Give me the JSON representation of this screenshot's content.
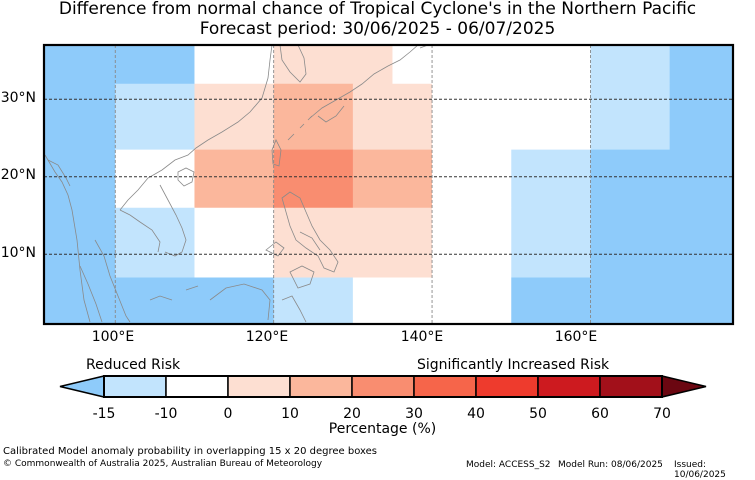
{
  "title": {
    "line1": "Difference from normal chance of Tropical Cyclone's in the Northern Pacific",
    "line2": "Forecast period: 30/06/2025 - 06/07/2025"
  },
  "colors": {
    "frame": "#000000",
    "coast": "#8a8a8a",
    "grid": "#333333",
    "outline": "#000000"
  },
  "map": {
    "lon_range": [
      91,
      178
    ],
    "lat_range": [
      1,
      37
    ],
    "lat_labels": [
      "30°N",
      "20°N",
      "10°N"
    ],
    "lat_values": [
      30,
      20,
      10
    ],
    "lon_labels": [
      "100°E",
      "120°E",
      "140°E",
      "160°E"
    ],
    "lon_values": [
      100,
      120,
      140,
      160
    ],
    "cells": [
      {
        "lon": [
          91,
          110
        ],
        "lat": [
          32,
          37
        ],
        "fill": "#8ecbfa"
      },
      {
        "lon": [
          110,
          120
        ],
        "lat": [
          32,
          37
        ],
        "fill": "#ffffff"
      },
      {
        "lon": [
          120,
          135
        ],
        "lat": [
          32,
          37
        ],
        "fill": "#fddfd2"
      },
      {
        "lon": [
          135,
          160
        ],
        "lat": [
          32,
          37
        ],
        "fill": "#ffffff"
      },
      {
        "lon": [
          160,
          170
        ],
        "lat": [
          32,
          37
        ],
        "fill": "#c2e4fd"
      },
      {
        "lon": [
          170,
          178
        ],
        "lat": [
          32,
          37
        ],
        "fill": "#8ecbfa"
      },
      {
        "lon": [
          91,
          100
        ],
        "lat": [
          23.5,
          32
        ],
        "fill": "#8ecbfa"
      },
      {
        "lon": [
          100,
          110
        ],
        "lat": [
          23.5,
          32
        ],
        "fill": "#c2e4fd"
      },
      {
        "lon": [
          110,
          120
        ],
        "lat": [
          23.5,
          32
        ],
        "fill": "#fddfd2"
      },
      {
        "lon": [
          120,
          130
        ],
        "lat": [
          23.5,
          32
        ],
        "fill": "#fbb79c"
      },
      {
        "lon": [
          130,
          140
        ],
        "lat": [
          23.5,
          32
        ],
        "fill": "#fddfd2"
      },
      {
        "lon": [
          140,
          160
        ],
        "lat": [
          23.5,
          32
        ],
        "fill": "#ffffff"
      },
      {
        "lon": [
          160,
          170
        ],
        "lat": [
          23.5,
          32
        ],
        "fill": "#c2e4fd"
      },
      {
        "lon": [
          170,
          178
        ],
        "lat": [
          23.5,
          32
        ],
        "fill": "#8ecbfa"
      },
      {
        "lon": [
          91,
          100
        ],
        "lat": [
          16,
          23.5
        ],
        "fill": "#8ecbfa"
      },
      {
        "lon": [
          100,
          110
        ],
        "lat": [
          16,
          23.5
        ],
        "fill": "#ffffff"
      },
      {
        "lon": [
          110,
          120
        ],
        "lat": [
          16,
          23.5
        ],
        "fill": "#fbb79c"
      },
      {
        "lon": [
          120,
          130
        ],
        "lat": [
          16,
          23.5
        ],
        "fill": "#f98d70"
      },
      {
        "lon": [
          130,
          140
        ],
        "lat": [
          16,
          23.5
        ],
        "fill": "#fbb79c"
      },
      {
        "lon": [
          140,
          150
        ],
        "lat": [
          16,
          23.5
        ],
        "fill": "#ffffff"
      },
      {
        "lon": [
          150,
          160
        ],
        "lat": [
          16,
          23.5
        ],
        "fill": "#c2e4fd"
      },
      {
        "lon": [
          160,
          178
        ],
        "lat": [
          16,
          23.5
        ],
        "fill": "#8ecbfa"
      },
      {
        "lon": [
          91,
          100
        ],
        "lat": [
          7,
          16
        ],
        "fill": "#8ecbfa"
      },
      {
        "lon": [
          100,
          110
        ],
        "lat": [
          7,
          16
        ],
        "fill": "#c2e4fd"
      },
      {
        "lon": [
          110,
          120
        ],
        "lat": [
          7,
          16
        ],
        "fill": "#ffffff"
      },
      {
        "lon": [
          120,
          140
        ],
        "lat": [
          7,
          16
        ],
        "fill": "#fddfd2"
      },
      {
        "lon": [
          140,
          150
        ],
        "lat": [
          7,
          16
        ],
        "fill": "#ffffff"
      },
      {
        "lon": [
          150,
          160
        ],
        "lat": [
          7,
          16
        ],
        "fill": "#c2e4fd"
      },
      {
        "lon": [
          160,
          178
        ],
        "lat": [
          7,
          16
        ],
        "fill": "#8ecbfa"
      },
      {
        "lon": [
          91,
          120
        ],
        "lat": [
          1,
          7
        ],
        "fill": "#8ecbfa"
      },
      {
        "lon": [
          120,
          130
        ],
        "lat": [
          1,
          7
        ],
        "fill": "#c2e4fd"
      },
      {
        "lon": [
          130,
          150
        ],
        "lat": [
          1,
          7
        ],
        "fill": "#ffffff"
      },
      {
        "lon": [
          150,
          178
        ],
        "lat": [
          1,
          7
        ],
        "fill": "#8ecbfa"
      }
    ]
  },
  "legend": {
    "reduced_label": "Reduced Risk",
    "increased_label": "Significantly Increased Risk",
    "colorbar_label": "Percentage (%)",
    "ticks": [
      "-15",
      "-10",
      "0",
      "10",
      "20",
      "30",
      "40",
      "50",
      "60",
      "70"
    ],
    "under_color": "#8ecbfa",
    "over_color": "#6b0711",
    "bins": [
      {
        "from": -15,
        "to": -10,
        "color": "#c2e4fd"
      },
      {
        "from": -10,
        "to": 0,
        "color": "#ffffff"
      },
      {
        "from": 0,
        "to": 10,
        "color": "#fddfd2"
      },
      {
        "from": 10,
        "to": 20,
        "color": "#fbb79c"
      },
      {
        "from": 20,
        "to": 30,
        "color": "#f98d70"
      },
      {
        "from": 30,
        "to": 40,
        "color": "#f6654a"
      },
      {
        "from": 40,
        "to": 50,
        "color": "#ee3b2d"
      },
      {
        "from": 50,
        "to": 60,
        "color": "#cd1a1f"
      },
      {
        "from": 60,
        "to": 70,
        "color": "#a2101a"
      }
    ]
  },
  "footer": {
    "note": "Calibrated Model anomaly probability in overlapping 15 x 20 degree boxes",
    "copyright": "© Commonwealth of Australia 2025, Australian Bureau of Meteorology",
    "model": "Model: ACCESS_S2",
    "model_run": "Model Run: 08/06/2025",
    "issued": "Issued: 10/06/2025"
  }
}
